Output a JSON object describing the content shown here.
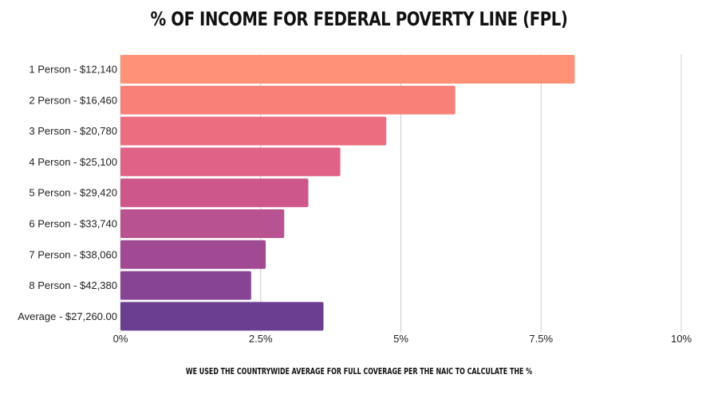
{
  "chart_data": {
    "type": "bar",
    "orientation": "horizontal",
    "title": "% OF INCOME FOR FEDERAL POVERTY LINE (FPL)",
    "footnote": "WE USED THE COUNTRYWIDE AVERAGE FOR FULL COVERAGE PER THE NAIC TO CALCULATE THE %",
    "categories": [
      "1 Person - $12,140",
      "2 Person - $16,460",
      "3 Person - $20,780",
      "4 Person - $25,100",
      "5 Person - $29,420",
      "6 Person - $33,740",
      "7 Person - $38,060",
      "8 Person - $42,380",
      "Average - $27,260.00"
    ],
    "values": [
      8.1,
      5.97,
      4.74,
      3.92,
      3.35,
      2.92,
      2.59,
      2.33,
      3.62
    ],
    "colors": [
      "#ff9176",
      "#f88079",
      "#ec6d7f",
      "#e06387",
      "#cd578a",
      "#b95290",
      "#a14993",
      "#874494",
      "#6b3e91"
    ],
    "xlim": [
      0,
      10
    ],
    "x_ticks": [
      {
        "value": 0,
        "label": "0%"
      },
      {
        "value": 2.5,
        "label": "2.5%"
      },
      {
        "value": 5,
        "label": "5%"
      },
      {
        "value": 7.5,
        "label": "7.5%"
      },
      {
        "value": 10,
        "label": "10%"
      }
    ],
    "grid": true,
    "xlabel": "",
    "ylabel": ""
  }
}
